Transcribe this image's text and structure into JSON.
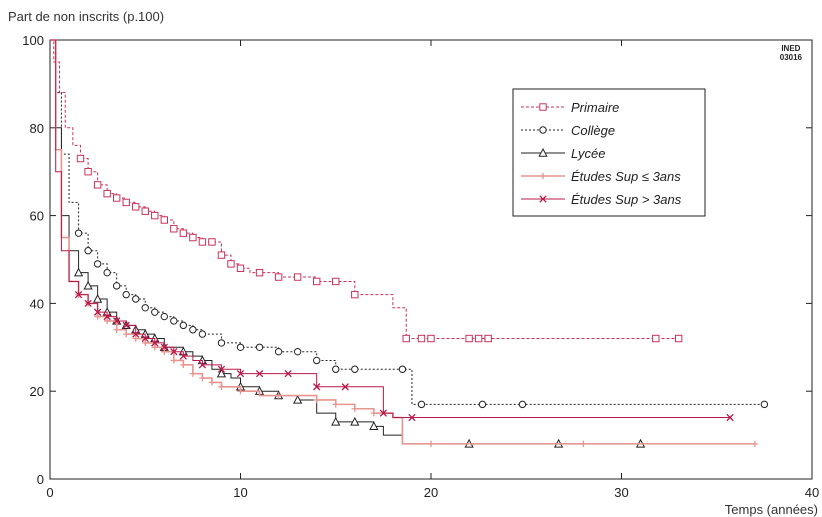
{
  "chart_data": {
    "type": "line",
    "xlabel": "Temps (années)",
    "ylabel": "Part de non inscrits (p.100)",
    "xlim": [
      0,
      40
    ],
    "ylim": [
      0,
      100
    ],
    "xticks": [
      0,
      10,
      20,
      30,
      40
    ],
    "yticks": [
      0,
      20,
      40,
      60,
      80,
      100
    ],
    "grid": false,
    "legend_position": "top-right",
    "stamp": [
      "INED",
      "03016"
    ],
    "series": [
      {
        "name": "Primaire",
        "color": "#c8325a",
        "dash": "3,2",
        "marker": "square",
        "x": [
          0,
          0.2,
          0.5,
          0.8,
          1.2,
          1.6,
          2.0,
          2.5,
          3.0,
          3.5,
          4.0,
          4.5,
          5.0,
          5.5,
          6.0,
          6.5,
          7.0,
          7.5,
          8.0,
          8.5,
          9.0,
          9.5,
          10.0,
          10.5,
          11.0,
          12.0,
          13.0,
          14.0,
          15.0,
          16.0,
          17.0,
          18.0,
          18.7,
          19.5,
          20.0,
          22.0,
          22.7,
          31.8,
          33.0
        ],
        "y": [
          100,
          95,
          88,
          80,
          76,
          73,
          70,
          67,
          65,
          64,
          63,
          62,
          61,
          60,
          59,
          57,
          56,
          55,
          54,
          54,
          51,
          49,
          48,
          47,
          47,
          46,
          46,
          45,
          45,
          42,
          42,
          39,
          32,
          32,
          32,
          32,
          32,
          32,
          32
        ],
        "markers_x": [
          1.6,
          2.0,
          2.5,
          3.0,
          3.5,
          4.0,
          4.5,
          5.0,
          5.5,
          6.0,
          6.5,
          7.0,
          7.5,
          8.0,
          8.5,
          9.0,
          9.5,
          10.0,
          11.0,
          12.0,
          13.0,
          14.0,
          15.0,
          16.0,
          18.7,
          19.5,
          20.0,
          22.0,
          22.5,
          23.0,
          31.8,
          33.0
        ]
      },
      {
        "name": "Collège",
        "color": "#222222",
        "dash": "2,2",
        "marker": "circle",
        "x": [
          0,
          0.3,
          0.6,
          1.0,
          1.5,
          2.0,
          2.5,
          3.0,
          3.5,
          4.0,
          4.5,
          5.0,
          5.5,
          6.0,
          6.5,
          7.0,
          7.5,
          8.0,
          9.0,
          10.0,
          11.0,
          12.0,
          13.0,
          14.0,
          15.0,
          16.0,
          17.0,
          18.5,
          19.0,
          19.5,
          22.7,
          24.8,
          37.5
        ],
        "y": [
          100,
          88,
          74,
          63,
          56,
          52,
          49,
          47,
          44,
          42,
          41,
          39,
          38,
          37,
          36,
          35,
          34,
          33,
          31,
          30,
          30,
          29,
          29,
          27,
          25,
          25,
          25,
          25,
          17,
          17,
          17,
          17,
          17
        ],
        "markers_x": [
          1.5,
          2.0,
          2.5,
          3.0,
          3.5,
          4.0,
          4.5,
          5.0,
          5.5,
          6.0,
          6.5,
          7.0,
          7.5,
          8.0,
          9.0,
          10.0,
          11.0,
          12.0,
          13.0,
          14.0,
          15.0,
          16.0,
          18.5,
          19.5,
          22.7,
          24.8,
          37.5
        ]
      },
      {
        "name": "Lycée",
        "color": "#222222",
        "dash": "",
        "marker": "triangle",
        "x": [
          0,
          0.3,
          0.6,
          1.0,
          1.5,
          2.0,
          2.5,
          3.0,
          3.5,
          4.0,
          4.5,
          5.0,
          5.5,
          6.0,
          6.5,
          7.0,
          7.5,
          8.0,
          8.5,
          9.0,
          9.5,
          10.0,
          11.0,
          12.0,
          13.0,
          14.0,
          15.0,
          16.0,
          17.0,
          17.5,
          18.0,
          18.5,
          20.0,
          22.0,
          26.7,
          31.0
        ],
        "y": [
          100,
          80,
          60,
          52,
          47,
          44,
          41,
          38,
          36,
          35,
          34,
          33,
          32,
          30,
          30,
          29,
          28,
          27,
          25,
          24,
          23,
          21,
          20,
          19,
          18,
          15,
          13,
          13,
          12,
          10,
          10,
          8,
          8,
          8,
          8,
          8
        ],
        "markers_x": [
          1.5,
          2.0,
          2.5,
          3.0,
          3.5,
          4.0,
          4.5,
          5.0,
          5.5,
          6.0,
          7.0,
          8.0,
          9.0,
          10.0,
          11.0,
          12.0,
          13.0,
          15.0,
          16.0,
          17.0,
          22.0,
          26.7,
          31.0
        ]
      },
      {
        "name": "Études Sup ≤ 3ans",
        "color": "#e8958f",
        "dash": "",
        "marker": "plus",
        "x": [
          0,
          0.3,
          0.6,
          1.0,
          1.5,
          2.0,
          2.5,
          3.0,
          3.5,
          4.0,
          4.5,
          5.0,
          5.5,
          6.0,
          6.5,
          7.0,
          7.5,
          8.0,
          8.5,
          9.0,
          10.0,
          11.0,
          12.0,
          13.0,
          14.0,
          15.0,
          16.0,
          17.0,
          18.0,
          18.5,
          20.0,
          28.0,
          37.0
        ],
        "y": [
          100,
          75,
          55,
          45,
          42,
          40,
          37,
          36,
          34,
          33,
          32,
          31,
          30,
          29,
          27,
          26,
          24,
          23,
          22,
          21,
          20,
          19,
          19,
          19,
          18,
          17,
          16,
          15,
          14,
          8,
          8,
          8,
          8
        ],
        "markers_x": [
          1.5,
          2.0,
          2.5,
          3.0,
          3.5,
          4.0,
          4.5,
          5.0,
          5.5,
          6.0,
          6.5,
          7.0,
          7.5,
          8.0,
          8.5,
          9.0,
          10.0,
          12.0,
          14.0,
          15.0,
          16.0,
          17.0,
          20.0,
          28.0,
          37.0
        ]
      },
      {
        "name": "Études Sup > 3ans",
        "color": "#b8184a",
        "dash": "",
        "marker": "cross",
        "x": [
          0,
          0.3,
          0.6,
          1.0,
          1.5,
          2.0,
          2.5,
          3.0,
          3.5,
          4.0,
          4.5,
          5.0,
          5.5,
          6.0,
          6.5,
          7.0,
          7.5,
          8.0,
          8.5,
          9.0,
          10.0,
          11.0,
          12.0,
          13.0,
          14.0,
          15.0,
          16.0,
          17.0,
          17.5,
          18.0,
          19.0,
          30.0,
          35.7
        ],
        "y": [
          100,
          70,
          52,
          45,
          42,
          40,
          38,
          37,
          36,
          35,
          33,
          32,
          31,
          30,
          29,
          28,
          27,
          26,
          26,
          25,
          24,
          24,
          24,
          24,
          21,
          21,
          21,
          21,
          15,
          14,
          14,
          14,
          14
        ],
        "markers_x": [
          1.5,
          2.0,
          2.5,
          3.0,
          3.5,
          4.0,
          4.5,
          5.0,
          5.5,
          6.0,
          6.5,
          7.0,
          8.0,
          9.0,
          10.0,
          11.0,
          12.5,
          14.0,
          15.5,
          17.5,
          19.0,
          35.7
        ]
      }
    ]
  }
}
